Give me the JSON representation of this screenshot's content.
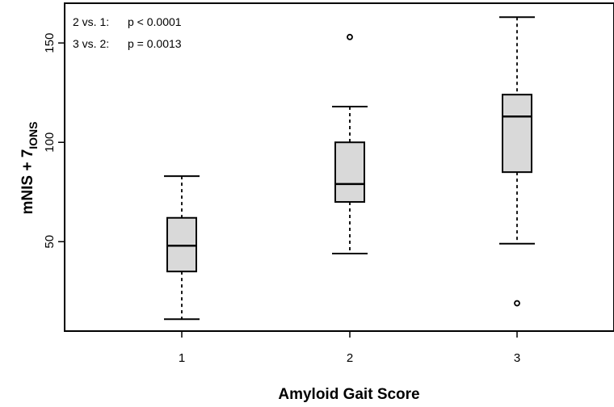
{
  "chart_data": {
    "type": "boxplot",
    "xlabel": "Amyloid  Gait  Score",
    "ylabel": {
      "main": "mNIS + 7",
      "subscript": "IONS"
    },
    "categories": [
      "1",
      "2",
      "3"
    ],
    "yticks": [
      50,
      100,
      150
    ],
    "ylim": [
      5,
      170
    ],
    "grid": false,
    "boxes": [
      {
        "category": "1",
        "whisker_low": 11,
        "q1": 35,
        "median": 48,
        "q3": 62,
        "whisker_high": 83,
        "outliers": []
      },
      {
        "category": "2",
        "whisker_low": 44,
        "q1": 70,
        "median": 79,
        "q3": 100,
        "whisker_high": 118,
        "outliers": [
          153
        ]
      },
      {
        "category": "3",
        "whisker_low": 49,
        "q1": 85,
        "median": 113,
        "q3": 124,
        "whisker_high": 163,
        "outliers": [
          19
        ]
      }
    ],
    "annotations": [
      {
        "label": "2 vs. 1:",
        "value": "p < 0.0001"
      },
      {
        "label": "3 vs. 2:",
        "value": "p = 0.0013"
      }
    ],
    "colors": {
      "box_fill": "#d9d9d9",
      "line": "#000000"
    }
  }
}
